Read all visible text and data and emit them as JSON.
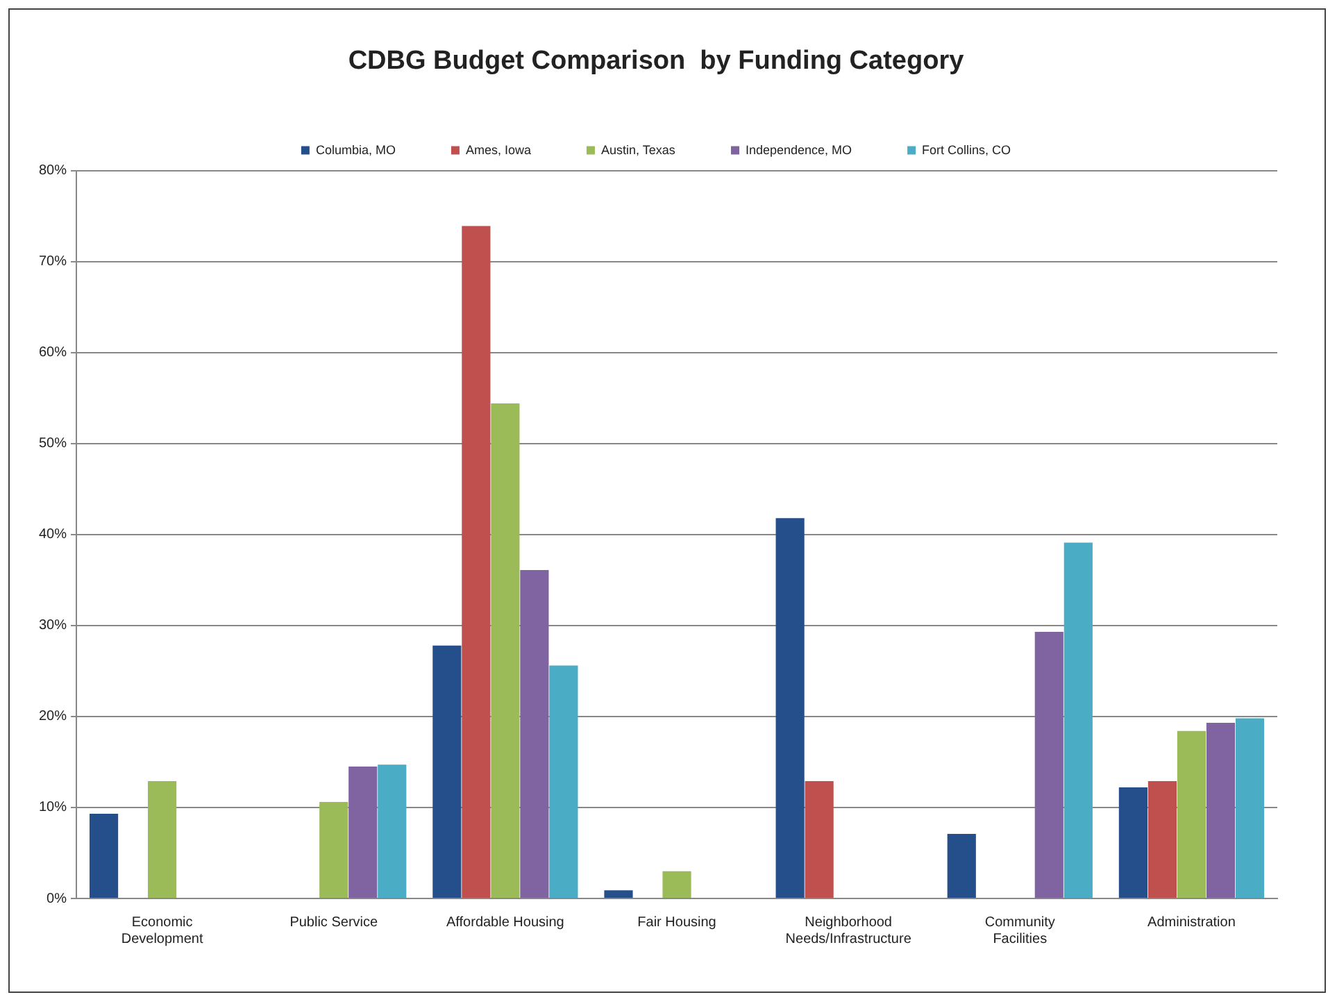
{
  "chart_data": {
    "type": "bar",
    "title": "CDBG Budget Comparison  by Funding Category",
    "categories": [
      "Economic Development",
      "Public Service",
      "Affordable Housing",
      "Fair Housing",
      "Neighborhood Needs/Infrastructure",
      "Community Facilities",
      "Administration"
    ],
    "series": [
      {
        "name": "Columbia, MO",
        "color": "#254f8a",
        "values": [
          9.3,
          null,
          27.8,
          0.9,
          41.8,
          7.1,
          12.2
        ]
      },
      {
        "name": "Ames, Iowa",
        "color": "#c0504d",
        "values": [
          null,
          null,
          73.9,
          null,
          12.9,
          null,
          12.9
        ]
      },
      {
        "name": "Austin, Texas",
        "color": "#9bbb59",
        "values": [
          12.9,
          10.6,
          54.4,
          3.0,
          null,
          null,
          18.4
        ]
      },
      {
        "name": "Independence, MO",
        "color": "#8064a2",
        "values": [
          null,
          14.5,
          36.1,
          null,
          null,
          29.3,
          19.3
        ]
      },
      {
        "name": "Fort Collins, CO",
        "color": "#4bacc6",
        "values": [
          null,
          14.7,
          25.6,
          null,
          null,
          39.1,
          19.8
        ]
      }
    ],
    "ylim": [
      0,
      80
    ],
    "yticks": [
      {
        "value": 0,
        "label": "0%"
      },
      {
        "value": 10,
        "label": "10%"
      },
      {
        "value": 20,
        "label": "20%"
      },
      {
        "value": 30,
        "label": "30%"
      },
      {
        "value": 40,
        "label": "40%"
      },
      {
        "value": 50,
        "label": "50%"
      },
      {
        "value": 60,
        "label": "60%"
      },
      {
        "value": 70,
        "label": "70%"
      },
      {
        "value": 80,
        "label": "80%"
      }
    ],
    "grid": "y",
    "legend": "top"
  }
}
